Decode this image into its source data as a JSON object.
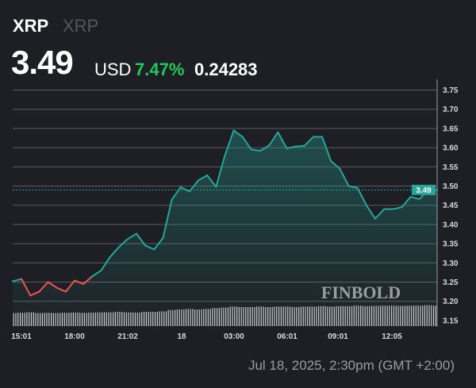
{
  "header": {
    "symbol": "XRP",
    "name": "XRP",
    "price": "3.49",
    "currency": "USD",
    "change_pct": "7.47%",
    "change_abs": "0.24283"
  },
  "footer": {
    "timestamp": "Jul 18, 2025, 2:30pm (GMT +2:00)"
  },
  "watermark": "FINBOLD",
  "colors": {
    "up": "#26a69a",
    "down": "#ef5350",
    "positive_text": "#1fc95a",
    "background": "#1d1f24"
  },
  "chart_data": {
    "type": "line",
    "title": "",
    "xlabel": "",
    "ylabel": "",
    "ylim": [
      3.15,
      3.75
    ],
    "yticks": [
      "3.15",
      "3.20",
      "3.25",
      "3.30",
      "3.35",
      "3.40",
      "3.45",
      "3.50",
      "3.55",
      "3.60",
      "3.65",
      "3.70",
      "3.75"
    ],
    "xticks": [
      "15:01",
      "18:00",
      "21:02",
      "18",
      "03:00",
      "06:01",
      "09:01",
      "12:05"
    ],
    "grid": true,
    "last_price_label": "3.49",
    "open": 3.247,
    "x": [
      "14:30",
      "15:00",
      "15:30",
      "16:00",
      "16:30",
      "17:00",
      "17:30",
      "18:00",
      "18:30",
      "19:00",
      "19:30",
      "20:00",
      "20:30",
      "21:00",
      "21:30",
      "22:00",
      "22:30",
      "23:00",
      "23:30",
      "00:00",
      "00:30",
      "01:00",
      "01:30",
      "02:00",
      "02:30",
      "03:00",
      "03:30",
      "04:00",
      "04:30",
      "05:00",
      "05:30",
      "06:00",
      "06:30",
      "07:00",
      "07:30",
      "08:00",
      "08:30",
      "09:00",
      "09:30",
      "10:00",
      "10:30",
      "11:00",
      "11:30",
      "12:00",
      "12:30",
      "13:00",
      "13:30",
      "14:00",
      "14:30"
    ],
    "values": [
      3.252,
      3.258,
      3.215,
      3.225,
      3.25,
      3.235,
      3.225,
      3.254,
      3.245,
      3.265,
      3.28,
      3.315,
      3.341,
      3.362,
      3.376,
      3.345,
      3.335,
      3.365,
      3.465,
      3.497,
      3.486,
      3.515,
      3.528,
      3.498,
      3.58,
      3.645,
      3.628,
      3.595,
      3.592,
      3.606,
      3.64,
      3.598,
      3.603,
      3.605,
      3.628,
      3.628,
      3.565,
      3.545,
      3.5,
      3.495,
      3.45,
      3.415,
      3.44,
      3.44,
      3.445,
      3.472,
      3.466,
      3.49,
      3.49
    ],
    "volume_relative": [
      0.55,
      0.56,
      0.58,
      0.55,
      0.56,
      0.55,
      0.56,
      0.57,
      0.56,
      0.57,
      0.58,
      0.58,
      0.6,
      0.58,
      0.57,
      0.6,
      0.6,
      0.62,
      0.68,
      0.7,
      0.72,
      0.7,
      0.72,
      0.76,
      0.78,
      0.82,
      0.8,
      0.8,
      0.82,
      0.8,
      0.82,
      0.82,
      0.8,
      0.82,
      0.82,
      0.84,
      0.82,
      0.84,
      0.84,
      0.86,
      0.84,
      0.85,
      0.86,
      0.86,
      0.85,
      0.86,
      0.86,
      0.88,
      0.86
    ]
  }
}
